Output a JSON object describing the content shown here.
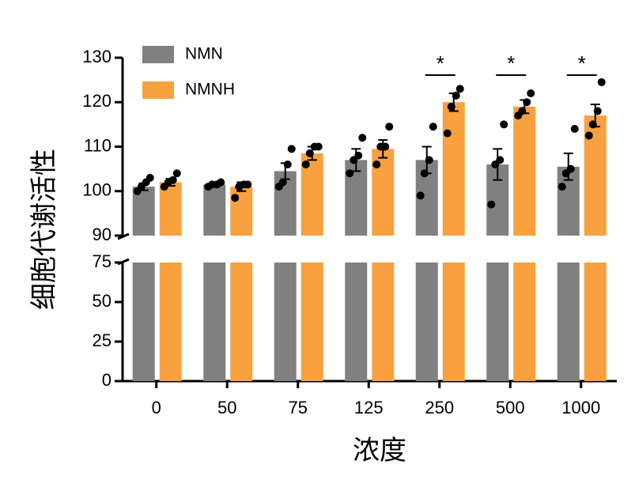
{
  "chart_data": {
    "type": "bar",
    "y_label": "细胞代谢活性",
    "x_label": "浓度",
    "categories": [
      "0",
      "50",
      "75",
      "125",
      "250",
      "500",
      "1000"
    ],
    "series": [
      {
        "name": "NMN",
        "color": "#808080",
        "values": [
          101,
          101.5,
          104.5,
          107,
          107,
          106,
          105.5
        ],
        "errors": [
          0.8,
          0.5,
          1.8,
          2.5,
          3,
          3.5,
          3
        ],
        "points": [
          [
            100,
            101,
            102,
            103
          ],
          [
            101,
            101.5,
            101.5,
            102
          ],
          [
            101,
            102,
            106,
            109.5
          ],
          [
            104,
            107,
            108,
            112
          ],
          [
            99,
            104,
            107,
            114.5
          ],
          [
            97,
            106,
            107,
            115
          ],
          [
            101,
            104,
            105,
            114
          ]
        ]
      },
      {
        "name": "NMNH",
        "color": "#f9a03f",
        "values": [
          102,
          101,
          108.5,
          109.5,
          120,
          119,
          117
        ],
        "errors": [
          0.8,
          1,
          1.5,
          2,
          2,
          1.5,
          2.5
        ],
        "points": [
          [
            101,
            102,
            102.5,
            104
          ],
          [
            98.5,
            101,
            101.5,
            101.5
          ],
          [
            106,
            108.5,
            110,
            110
          ],
          [
            106,
            110,
            110,
            114.5
          ],
          [
            113,
            119,
            121.5,
            123
          ],
          [
            117,
            118,
            120,
            122
          ],
          [
            112.5,
            115,
            118,
            124.5
          ]
        ]
      }
    ],
    "significance": [
      null,
      null,
      null,
      null,
      "*",
      "*",
      "*"
    ],
    "ylim": [
      0,
      130
    ],
    "ybreak": [
      75,
      90
    ],
    "yticks": [
      0,
      25,
      50,
      75,
      90,
      100,
      110,
      120,
      130
    ],
    "legend": "upper left"
  }
}
